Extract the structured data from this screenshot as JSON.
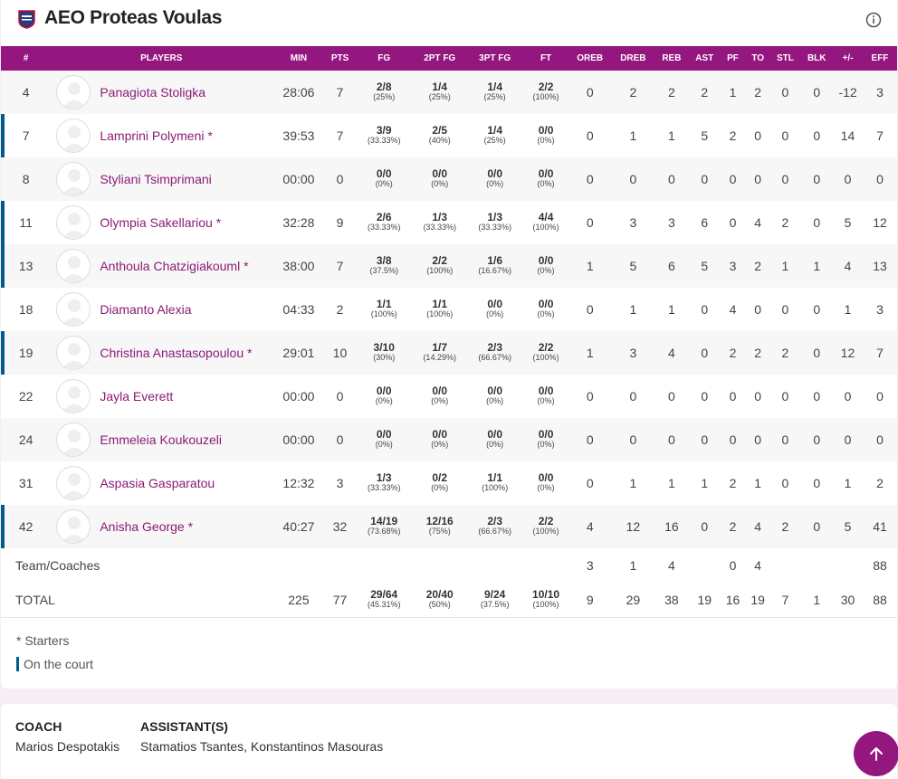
{
  "team": {
    "name": "AEO Proteas Voulas",
    "logo_icon": "team-crest-icon"
  },
  "columns": [
    "#",
    "PLAYERS",
    "MIN",
    "PTS",
    "FG",
    "2PT FG",
    "3PT FG",
    "FT",
    "OREB",
    "DREB",
    "REB",
    "AST",
    "PF",
    "TO",
    "STL",
    "BLK",
    "+/-",
    "EFF"
  ],
  "players": [
    {
      "num": "4",
      "name": "Panagiota Stoligka",
      "starter": false,
      "on_court": false,
      "min": "28:06",
      "pts": "7",
      "fg": "2/8",
      "fg_pct": "(25%)",
      "pt2": "1/4",
      "pt2_pct": "(25%)",
      "pt3": "1/4",
      "pt3_pct": "(25%)",
      "ft": "2/2",
      "ft_pct": "(100%)",
      "oreb": "0",
      "dreb": "2",
      "reb": "2",
      "ast": "2",
      "pf": "1",
      "to": "2",
      "stl": "0",
      "blk": "0",
      "pm": "-12",
      "eff": "3"
    },
    {
      "num": "7",
      "name": "Lamprini Polymeni *",
      "starter": true,
      "on_court": true,
      "min": "39:53",
      "pts": "7",
      "fg": "3/9",
      "fg_pct": "(33.33%)",
      "pt2": "2/5",
      "pt2_pct": "(40%)",
      "pt3": "1/4",
      "pt3_pct": "(25%)",
      "ft": "0/0",
      "ft_pct": "(0%)",
      "oreb": "0",
      "dreb": "1",
      "reb": "1",
      "ast": "5",
      "pf": "2",
      "to": "0",
      "stl": "0",
      "blk": "0",
      "pm": "14",
      "eff": "7"
    },
    {
      "num": "8",
      "name": "Styliani Tsimprimani",
      "starter": false,
      "on_court": false,
      "min": "00:00",
      "pts": "0",
      "fg": "0/0",
      "fg_pct": "(0%)",
      "pt2": "0/0",
      "pt2_pct": "(0%)",
      "pt3": "0/0",
      "pt3_pct": "(0%)",
      "ft": "0/0",
      "ft_pct": "(0%)",
      "oreb": "0",
      "dreb": "0",
      "reb": "0",
      "ast": "0",
      "pf": "0",
      "to": "0",
      "stl": "0",
      "blk": "0",
      "pm": "0",
      "eff": "0"
    },
    {
      "num": "11",
      "name": "Olympia Sakellariou *",
      "starter": true,
      "on_court": true,
      "min": "32:28",
      "pts": "9",
      "fg": "2/6",
      "fg_pct": "(33.33%)",
      "pt2": "1/3",
      "pt2_pct": "(33.33%)",
      "pt3": "1/3",
      "pt3_pct": "(33.33%)",
      "ft": "4/4",
      "ft_pct": "(100%)",
      "oreb": "0",
      "dreb": "3",
      "reb": "3",
      "ast": "6",
      "pf": "0",
      "to": "4",
      "stl": "2",
      "blk": "0",
      "pm": "5",
      "eff": "12"
    },
    {
      "num": "13",
      "name": "Anthoula Chatzigiakouml *",
      "starter": true,
      "on_court": true,
      "min": "38:00",
      "pts": "7",
      "fg": "3/8",
      "fg_pct": "(37.5%)",
      "pt2": "2/2",
      "pt2_pct": "(100%)",
      "pt3": "1/6",
      "pt3_pct": "(16.67%)",
      "ft": "0/0",
      "ft_pct": "(0%)",
      "oreb": "1",
      "dreb": "5",
      "reb": "6",
      "ast": "5",
      "pf": "3",
      "to": "2",
      "stl": "1",
      "blk": "1",
      "pm": "4",
      "eff": "13"
    },
    {
      "num": "18",
      "name": "Diamanto Alexia",
      "starter": false,
      "on_court": false,
      "min": "04:33",
      "pts": "2",
      "fg": "1/1",
      "fg_pct": "(100%)",
      "pt2": "1/1",
      "pt2_pct": "(100%)",
      "pt3": "0/0",
      "pt3_pct": "(0%)",
      "ft": "0/0",
      "ft_pct": "(0%)",
      "oreb": "0",
      "dreb": "1",
      "reb": "1",
      "ast": "0",
      "pf": "4",
      "to": "0",
      "stl": "0",
      "blk": "0",
      "pm": "1",
      "eff": "3"
    },
    {
      "num": "19",
      "name": "Christina Anastasopoulou *",
      "starter": true,
      "on_court": true,
      "min": "29:01",
      "pts": "10",
      "fg": "3/10",
      "fg_pct": "(30%)",
      "pt2": "1/7",
      "pt2_pct": "(14.29%)",
      "pt3": "2/3",
      "pt3_pct": "(66.67%)",
      "ft": "2/2",
      "ft_pct": "(100%)",
      "oreb": "1",
      "dreb": "3",
      "reb": "4",
      "ast": "0",
      "pf": "2",
      "to": "2",
      "stl": "2",
      "blk": "0",
      "pm": "12",
      "eff": "7"
    },
    {
      "num": "22",
      "name": "Jayla Everett",
      "starter": false,
      "on_court": false,
      "min": "00:00",
      "pts": "0",
      "fg": "0/0",
      "fg_pct": "(0%)",
      "pt2": "0/0",
      "pt2_pct": "(0%)",
      "pt3": "0/0",
      "pt3_pct": "(0%)",
      "ft": "0/0",
      "ft_pct": "(0%)",
      "oreb": "0",
      "dreb": "0",
      "reb": "0",
      "ast": "0",
      "pf": "0",
      "to": "0",
      "stl": "0",
      "blk": "0",
      "pm": "0",
      "eff": "0"
    },
    {
      "num": "24",
      "name": "Emmeleia Koukouzeli",
      "starter": false,
      "on_court": false,
      "min": "00:00",
      "pts": "0",
      "fg": "0/0",
      "fg_pct": "(0%)",
      "pt2": "0/0",
      "pt2_pct": "(0%)",
      "pt3": "0/0",
      "pt3_pct": "(0%)",
      "ft": "0/0",
      "ft_pct": "(0%)",
      "oreb": "0",
      "dreb": "0",
      "reb": "0",
      "ast": "0",
      "pf": "0",
      "to": "0",
      "stl": "0",
      "blk": "0",
      "pm": "0",
      "eff": "0"
    },
    {
      "num": "31",
      "name": "Aspasia Gasparatou",
      "starter": false,
      "on_court": false,
      "min": "12:32",
      "pts": "3",
      "fg": "1/3",
      "fg_pct": "(33.33%)",
      "pt2": "0/2",
      "pt2_pct": "(0%)",
      "pt3": "1/1",
      "pt3_pct": "(100%)",
      "ft": "0/0",
      "ft_pct": "(0%)",
      "oreb": "0",
      "dreb": "1",
      "reb": "1",
      "ast": "1",
      "pf": "2",
      "to": "1",
      "stl": "0",
      "blk": "0",
      "pm": "1",
      "eff": "2"
    },
    {
      "num": "42",
      "name": "Anisha George *",
      "starter": true,
      "on_court": true,
      "min": "40:27",
      "pts": "32",
      "fg": "14/19",
      "fg_pct": "(73.68%)",
      "pt2": "12/16",
      "pt2_pct": "(75%)",
      "pt3": "2/3",
      "pt3_pct": "(66.67%)",
      "ft": "2/2",
      "ft_pct": "(100%)",
      "oreb": "4",
      "dreb": "12",
      "reb": "16",
      "ast": "0",
      "pf": "2",
      "to": "4",
      "stl": "2",
      "blk": "0",
      "pm": "5",
      "eff": "41"
    }
  ],
  "team_row": {
    "label": "Team/Coaches",
    "oreb": "3",
    "dreb": "1",
    "reb": "4",
    "pf": "0",
    "to": "4",
    "eff": "88"
  },
  "total_row": {
    "label": "TOTAL",
    "min": "225",
    "pts": "77",
    "fg": "29/64",
    "fg_pct": "(45.31%)",
    "pt2": "20/40",
    "pt2_pct": "(50%)",
    "pt3": "9/24",
    "pt3_pct": "(37.5%)",
    "ft": "10/10",
    "ft_pct": "(100%)",
    "oreb": "9",
    "dreb": "29",
    "reb": "38",
    "ast": "19",
    "pf": "16",
    "to": "19",
    "stl": "7",
    "blk": "1",
    "pm": "30",
    "eff": "88"
  },
  "legend": {
    "starters": "* Starters",
    "on_court": "On the court"
  },
  "staff": {
    "coach_label": "COACH",
    "coach": "Marios Despotakis",
    "assistants_label": "ASSISTANT(S)",
    "assistants": "Stamatios Tsantes, Konstantinos Masouras"
  },
  "colors": {
    "accent": "#94167f",
    "on_court_bar": "#005a8c",
    "player_link": "#8c1a76"
  },
  "icons": {
    "info": "info-icon",
    "scroll_top": "arrow-up-icon",
    "avatar": "avatar-placeholder-icon"
  }
}
